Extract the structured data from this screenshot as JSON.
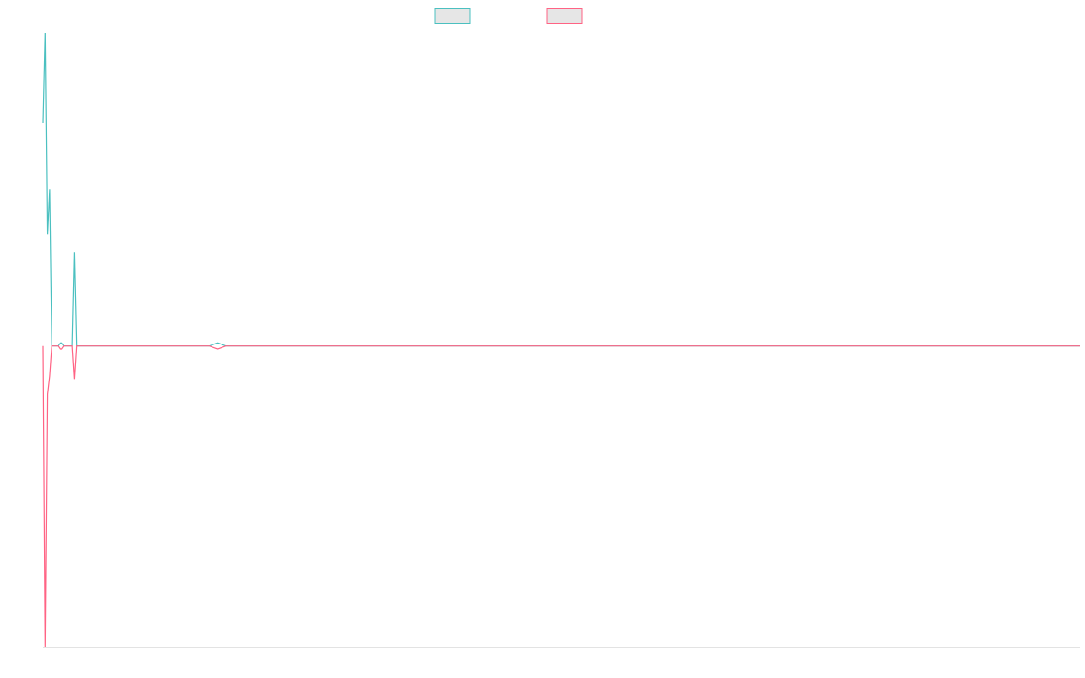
{
  "chart_data": {
    "type": "line",
    "title": "",
    "xlabel": "",
    "ylabel": "",
    "x": [
      0,
      0.5,
      1,
      1.5,
      2,
      2.5,
      3,
      3.5,
      4,
      4.5,
      5,
      5.5,
      6,
      6.5,
      7,
      7.5,
      8,
      10,
      12,
      14,
      16,
      18,
      20,
      21,
      22,
      24,
      26,
      28,
      30,
      32,
      34,
      36,
      38,
      40,
      42,
      44,
      46,
      48,
      50,
      52,
      54,
      56,
      58,
      60,
      70,
      80,
      90,
      100,
      110,
      120,
      130,
      140,
      150,
      160,
      170,
      180,
      190,
      200,
      210,
      220,
      230,
      240,
      250
    ],
    "xlim": [
      0,
      250
    ],
    "ylim": [
      -1,
      1.04
    ],
    "grid": false,
    "legend": {
      "position": "top-center"
    },
    "series": [
      {
        "color": "#4bc0c0",
        "values": [
          0.74,
          1.04,
          0.37,
          0.52,
          0.0,
          0,
          0,
          0,
          0,
          0,
          0,
          0,
          0,
          0,
          0,
          0,
          0,
          0,
          0,
          0,
          0,
          0,
          0,
          0,
          0,
          0,
          0,
          0,
          0,
          0,
          0,
          0,
          0,
          0,
          0,
          0,
          0,
          0,
          0,
          0,
          0,
          0,
          0,
          0,
          0,
          0,
          0,
          0,
          0,
          0,
          0,
          0,
          0,
          0,
          0,
          0,
          0,
          0,
          0,
          0,
          0,
          0,
          0
        ],
        "overrides": {
          "15": 0.31,
          "8": 0.01,
          "9": 0.01,
          "34": 0.01
        }
      },
      {
        "color": "#ff6384",
        "values": [
          0.0,
          -1.0,
          -0.16,
          -0.1,
          0.0,
          0,
          0,
          0,
          0,
          0,
          0,
          0,
          0,
          0,
          0,
          0,
          0,
          0,
          0,
          0,
          0,
          0,
          0,
          0,
          0,
          0,
          0,
          0,
          0,
          0,
          0,
          0,
          0,
          0,
          0,
          0,
          0,
          0,
          0,
          0,
          0,
          0,
          0,
          0,
          0,
          0,
          0,
          0,
          0,
          0,
          0,
          0,
          0,
          0,
          0,
          0,
          0,
          0,
          0,
          0,
          0,
          0,
          0
        ],
        "overrides": {
          "15": -0.11,
          "8": -0.01,
          "9": -0.01,
          "34": -0.01
        }
      }
    ]
  }
}
